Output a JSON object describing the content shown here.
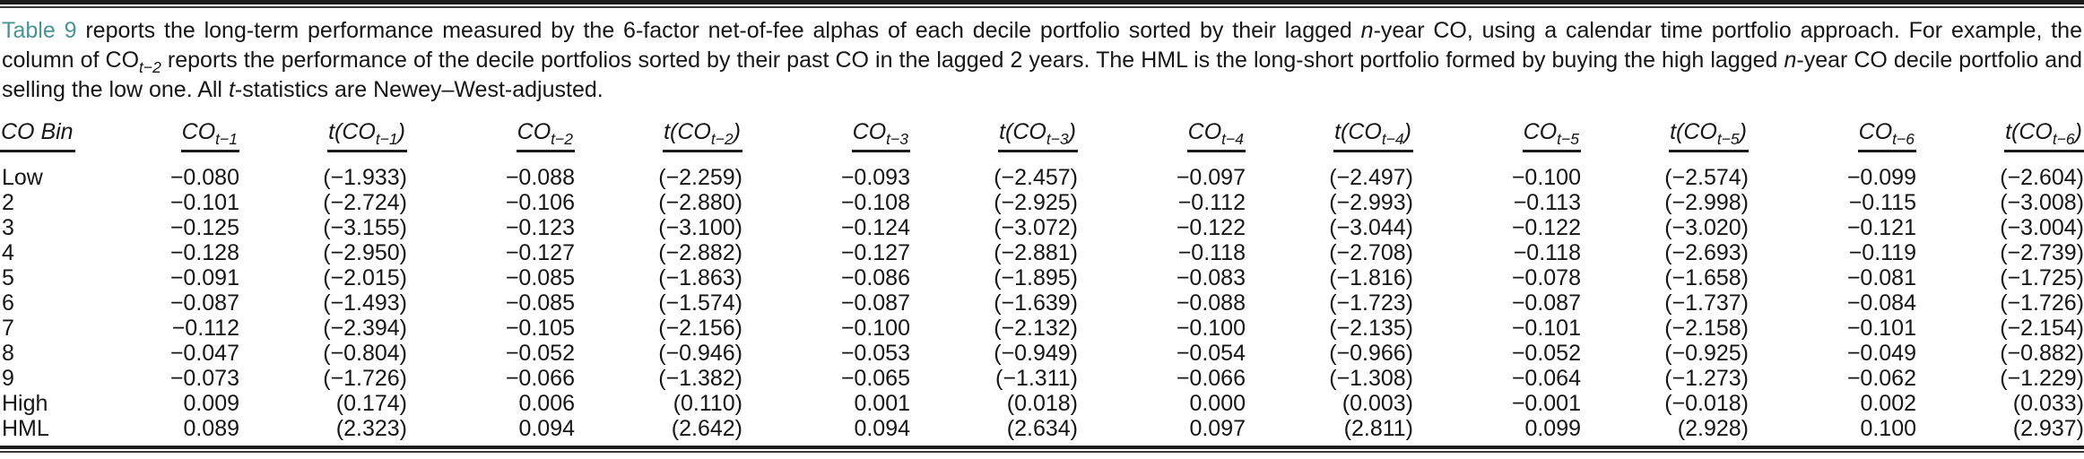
{
  "colors": {
    "accent_teal": "#4a9496",
    "text": "#161616",
    "background": "#ffffff"
  },
  "caption": {
    "segments": [
      {
        "text": "Table 9",
        "style": "link"
      },
      {
        "text": " reports the long-term performance measured by the 6-factor net-of-fee alphas of each decile portfolio sorted by their lagged ",
        "style": ""
      },
      {
        "text": "n",
        "style": "italic"
      },
      {
        "text": "-year CO, using a calendar time portfolio approach. For example, the column of CO",
        "style": ""
      },
      {
        "text": "t−2",
        "style": "sub"
      },
      {
        "text": " reports the performance of the decile portfolios sorted by their past CO in the lagged 2 years. The HML is the long-short portfolio formed by buying the high lagged ",
        "style": ""
      },
      {
        "text": "n",
        "style": "italic"
      },
      {
        "text": "-year CO decile portfolio and selling the low one. All ",
        "style": ""
      },
      {
        "text": "t",
        "style": "italic"
      },
      {
        "text": "-statistics are Newey–West-adjusted.",
        "style": ""
      }
    ]
  },
  "table": {
    "columns": [
      {
        "pre": "",
        "main": "CO Bin",
        "sub": "",
        "post": ""
      },
      {
        "pre": "",
        "main": "CO",
        "sub": "t−1",
        "post": ""
      },
      {
        "pre": "t(",
        "main": "CO",
        "sub": "t−1",
        "post": ")"
      },
      {
        "pre": "",
        "main": "CO",
        "sub": "t−2",
        "post": ""
      },
      {
        "pre": "t(",
        "main": "CO",
        "sub": "t−2",
        "post": ")"
      },
      {
        "pre": "",
        "main": "CO",
        "sub": "t−3",
        "post": ""
      },
      {
        "pre": "t(",
        "main": "CO",
        "sub": "t−3",
        "post": ")"
      },
      {
        "pre": "",
        "main": "CO",
        "sub": "t−4",
        "post": ""
      },
      {
        "pre": "t(",
        "main": "CO",
        "sub": "t−4",
        "post": ")"
      },
      {
        "pre": "",
        "main": "CO",
        "sub": "t−5",
        "post": ""
      },
      {
        "pre": "t(",
        "main": "CO",
        "sub": "t−5",
        "post": ")"
      },
      {
        "pre": "",
        "main": "CO",
        "sub": "t−6",
        "post": ""
      },
      {
        "pre": "t(",
        "main": "CO",
        "sub": "t−6",
        "post": ")"
      }
    ],
    "rows": [
      {
        "bin": "Low",
        "values": [
          "−0.080",
          "(−1.933)",
          "−0.088",
          "(−2.259)",
          "−0.093",
          "(−2.457)",
          "−0.097",
          "(−2.497)",
          "−0.100",
          "(−2.574)",
          "−0.099",
          "(−2.604)"
        ]
      },
      {
        "bin": "2",
        "values": [
          "−0.101",
          "(−2.724)",
          "−0.106",
          "(−2.880)",
          "−0.108",
          "(−2.925)",
          "−0.112",
          "(−2.993)",
          "−0.113",
          "(−2.998)",
          "−0.115",
          "(−3.008)"
        ]
      },
      {
        "bin": "3",
        "values": [
          "−0.125",
          "(−3.155)",
          "−0.123",
          "(−3.100)",
          "−0.124",
          "(−3.072)",
          "−0.122",
          "(−3.044)",
          "−0.122",
          "(−3.020)",
          "−0.121",
          "(−3.004)"
        ]
      },
      {
        "bin": "4",
        "values": [
          "−0.128",
          "(−2.950)",
          "−0.127",
          "(−2.882)",
          "−0.127",
          "(−2.881)",
          "−0.118",
          "(−2.708)",
          "−0.118",
          "(−2.693)",
          "−0.119",
          "(−2.739)"
        ]
      },
      {
        "bin": "5",
        "values": [
          "−0.091",
          "(−2.015)",
          "−0.085",
          "(−1.863)",
          "−0.086",
          "(−1.895)",
          "−0.083",
          "(−1.816)",
          "−0.078",
          "(−1.658)",
          "−0.081",
          "(−1.725)"
        ]
      },
      {
        "bin": "6",
        "values": [
          "−0.087",
          "(−1.493)",
          "−0.085",
          "(−1.574)",
          "−0.087",
          "(−1.639)",
          "−0.088",
          "(−1.723)",
          "−0.087",
          "(−1.737)",
          "−0.084",
          "(−1.726)"
        ]
      },
      {
        "bin": "7",
        "values": [
          "−0.112",
          "(−2.394)",
          "−0.105",
          "(−2.156)",
          "−0.100",
          "(−2.132)",
          "−0.100",
          "(−2.135)",
          "−0.101",
          "(−2.158)",
          "−0.101",
          "(−2.154)"
        ]
      },
      {
        "bin": "8",
        "values": [
          "−0.047",
          "(−0.804)",
          "−0.052",
          "(−0.946)",
          "−0.053",
          "(−0.949)",
          "−0.054",
          "(−0.966)",
          "−0.052",
          "(−0.925)",
          "−0.049",
          "(−0.882)"
        ]
      },
      {
        "bin": "9",
        "values": [
          "−0.073",
          "(−1.726)",
          "−0.066",
          "(−1.382)",
          "−0.065",
          "(−1.311)",
          "−0.066",
          "(−1.308)",
          "−0.064",
          "(−1.273)",
          "−0.062",
          "(−1.229)"
        ]
      },
      {
        "bin": "High",
        "values": [
          "0.009",
          "(0.174)",
          "0.006",
          "(0.110)",
          "0.001",
          "(0.018)",
          "0.000",
          "(0.003)",
          "−0.001",
          "(−0.018)",
          "0.002",
          "(0.033)"
        ]
      },
      {
        "bin": "HML",
        "values": [
          "0.089",
          "(2.323)",
          "0.094",
          "(2.642)",
          "0.094",
          "(2.634)",
          "0.097",
          "(2.811)",
          "0.099",
          "(2.928)",
          "0.100",
          "(2.937)"
        ]
      }
    ]
  }
}
